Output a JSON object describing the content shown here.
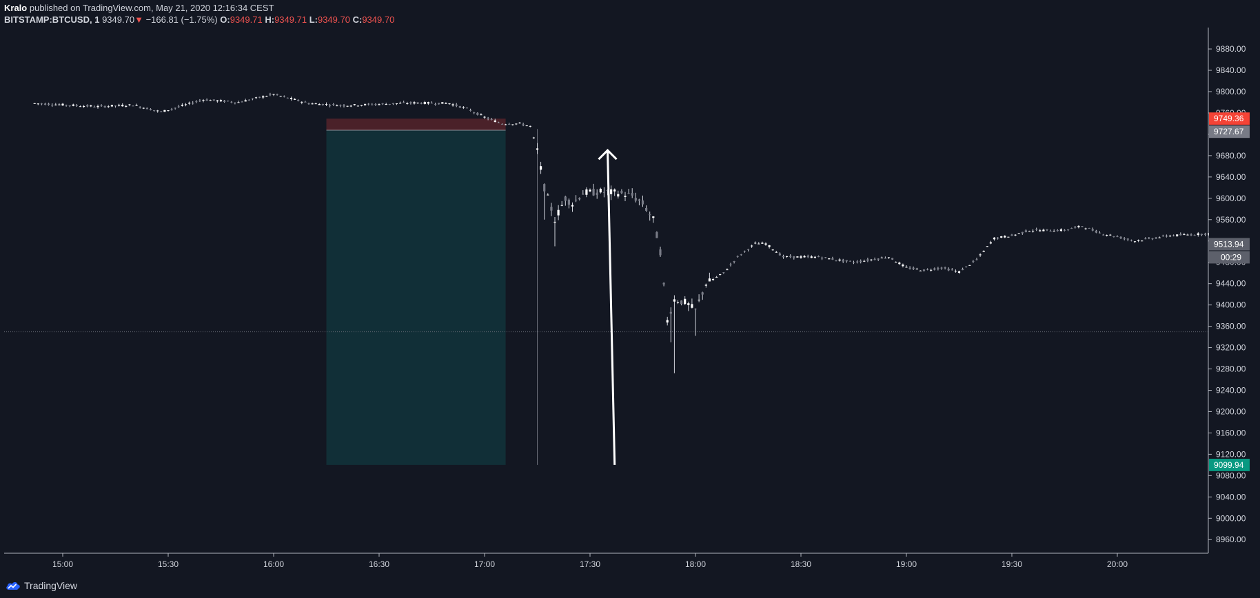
{
  "header": {
    "author": "Kralo",
    "published_text": "published on TradingView.com, May 21, 2020 12:16:34 CEST",
    "symbol": "BITSTAMP:BTCUSD, 1",
    "last_price": "9349.70",
    "change_arrow": "▼",
    "change": "−166.81 (−1.75%)",
    "ohlc": [
      {
        "key": "O:",
        "value": "9349.71"
      },
      {
        "key": "H:",
        "value": "9349.71"
      },
      {
        "key": "L:",
        "value": "9349.70"
      },
      {
        "key": "C:",
        "value": "9349.70"
      }
    ]
  },
  "footer": {
    "brand": "TradingView"
  },
  "colors": {
    "background": "#131722",
    "candle": "#d1d4dc",
    "stop_zone": "#4a2129",
    "target_zone": "#112f37",
    "short_label": "#f44336",
    "entry_label": "#787b86",
    "target_label": "#089981",
    "price_label": "#5d606b",
    "grid": "#2a2e39"
  },
  "chart_data": {
    "type": "candlestick",
    "symbol": "BITSTAMP:BTCUSD",
    "interval": "1",
    "ylim": [
      8920,
      9900
    ],
    "y_ticks": [
      "9880.00",
      "9840.00",
      "9800.00",
      "9760.00",
      "9720.00",
      "9680.00",
      "9640.00",
      "9600.00",
      "9560.00",
      "9520.00",
      "9480.00",
      "9440.00",
      "9400.00",
      "9360.00",
      "9320.00",
      "9280.00",
      "9240.00",
      "9200.00",
      "9160.00",
      "9120.00",
      "9080.00",
      "9040.00",
      "9000.00",
      "8960.00"
    ],
    "x_ticks": [
      "15:00",
      "15:30",
      "16:00",
      "16:30",
      "17:00",
      "17:30",
      "18:00",
      "18:30",
      "19:00",
      "19:30",
      "20:00"
    ],
    "start_time": "14:52",
    "end_time": "20:27",
    "close_path": [
      [
        "14:52",
        9778
      ],
      [
        "15:10",
        9772
      ],
      [
        "15:20",
        9775
      ],
      [
        "15:28",
        9762
      ],
      [
        "15:40",
        9785
      ],
      [
        "15:50",
        9780
      ],
      [
        "16:00",
        9795
      ],
      [
        "16:10",
        9778
      ],
      [
        "16:20",
        9774
      ],
      [
        "16:40",
        9779
      ],
      [
        "16:50",
        9778
      ],
      [
        "16:55",
        9768
      ],
      [
        "17:00",
        9752
      ],
      [
        "17:05",
        9740
      ],
      [
        "17:10",
        9740
      ],
      [
        "17:13",
        9735
      ],
      [
        "17:15",
        9690
      ],
      [
        "17:17",
        9620
      ],
      [
        "17:20",
        9560
      ],
      [
        "17:23",
        9600
      ],
      [
        "17:25",
        9590
      ],
      [
        "17:28",
        9610
      ],
      [
        "17:33",
        9612
      ],
      [
        "17:38",
        9610
      ],
      [
        "17:42",
        9605
      ],
      [
        "17:45",
        9590
      ],
      [
        "17:48",
        9560
      ],
      [
        "17:50",
        9500
      ],
      [
        "17:52",
        9370
      ],
      [
        "17:54",
        9410
      ],
      [
        "17:57",
        9405
      ],
      [
        "18:00",
        9390
      ],
      [
        "18:03",
        9440
      ],
      [
        "18:08",
        9460
      ],
      [
        "18:12",
        9490
      ],
      [
        "18:17",
        9515
      ],
      [
        "18:20",
        9515
      ],
      [
        "18:25",
        9490
      ],
      [
        "18:35",
        9490
      ],
      [
        "18:45",
        9480
      ],
      [
        "18:55",
        9490
      ],
      [
        "19:00",
        9470
      ],
      [
        "19:05",
        9465
      ],
      [
        "19:10",
        9470
      ],
      [
        "19:15",
        9462
      ],
      [
        "19:20",
        9485
      ],
      [
        "19:25",
        9525
      ],
      [
        "19:30",
        9530
      ],
      [
        "19:35",
        9540
      ],
      [
        "19:45",
        9540
      ],
      [
        "19:50",
        9548
      ],
      [
        "19:55",
        9535
      ],
      [
        "20:00",
        9528
      ],
      [
        "20:05",
        9520
      ],
      [
        "20:15",
        9530
      ],
      [
        "20:27",
        9534
      ]
    ],
    "spikes": [
      {
        "time": "17:17",
        "low": 9560
      },
      {
        "time": "17:20",
        "low": 9510
      },
      {
        "time": "17:53",
        "low": 9330
      },
      {
        "time": "17:54",
        "low": 9272
      },
      {
        "time": "18:00",
        "low": 9342
      }
    ],
    "position": {
      "side": "short",
      "start_time": "16:15",
      "end_time": "17:06",
      "stop": 9749.36,
      "entry": 9727.67,
      "target": 9099.94
    },
    "vertical_line_time": "17:15",
    "vertical_line_price_range": [
      9100,
      9730
    ],
    "horizontal_line_price": 9349.7,
    "arrow": {
      "from_time": "17:37",
      "from_price": 9100,
      "to_time": "17:35",
      "to_price": 9690
    },
    "price_labels": [
      {
        "price": 9749.36,
        "text": "9749.36",
        "color_key": "short_label"
      },
      {
        "price": 9727.67,
        "text": "9727.67",
        "color_key": "entry_label"
      },
      {
        "price": 9513.94,
        "text": "9513.94",
        "color_key": "price_label"
      },
      {
        "price": 9099.94,
        "text": "9099.94",
        "color_key": "target_label"
      }
    ],
    "countdown": "00:29"
  }
}
